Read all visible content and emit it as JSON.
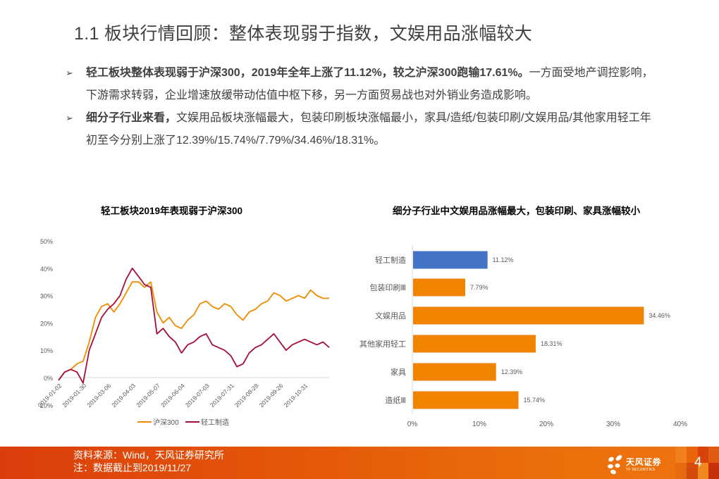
{
  "page": {
    "title": "1.1 板块行情回顾：整体表现弱于指数，文娱用品涨幅较大",
    "page_number": "4"
  },
  "bullets": [
    {
      "marker": "➢",
      "bold": "轻工板块整体表现弱于沪深300，2019年全年上涨了11.12%，较之沪深300跑输17.61%。",
      "text": "一方面受地产调控影响，下游需求转弱，企业增速放缓带动估值中枢下移，另一方面贸易战也对外销业务造成影响。"
    },
    {
      "marker": "➢",
      "bold": "细分子行业来看，",
      "text": "文娱用品板块涨幅最大，包装印刷板块涨幅最小，家具/造纸/包装印刷/文娱用品/其他家用轻工年初至今分别上涨了12.39%/15.74%/7.79%/34.46%/18.31%。"
    }
  ],
  "footer": {
    "source": "资料来源：Wind，天风证券研究所",
    "note": "注：数据截止到2019/11/27",
    "logo_name": "天风证券",
    "logo_sub": "TF SECURITIES"
  },
  "colors": {
    "hs300": "#f08a00",
    "light_industry": "#a50f37",
    "bar_highlight": "#4472c4",
    "bar_default": "#f08300",
    "footer_orange": "#e55a0a"
  },
  "chart_data": [
    {
      "type": "line",
      "title": "轻工板块2019年表现弱于沪深300",
      "xlabel": "",
      "ylabel": "",
      "ylim": [
        -0.1,
        0.5
      ],
      "yticks": [
        "-10%",
        "0%",
        "10%",
        "20%",
        "30%",
        "40%",
        "50%"
      ],
      "x_tick_labels": [
        "2019-01-02",
        "2019-01-30",
        "2019-03-06",
        "2019-04-03",
        "2019-05-07",
        "2019-06-04",
        "2019-07-03",
        "2019-07-31",
        "2019-08-28",
        "2019-09-26",
        "2019-10-31"
      ],
      "grid": false,
      "legend_position": "bottom",
      "x": [
        "2019-01-02",
        "2019-01-09",
        "2019-01-16",
        "2019-01-23",
        "2019-01-30",
        "2019-02-13",
        "2019-02-20",
        "2019-02-27",
        "2019-03-06",
        "2019-03-13",
        "2019-03-20",
        "2019-03-27",
        "2019-04-03",
        "2019-04-10",
        "2019-04-17",
        "2019-04-24",
        "2019-05-07",
        "2019-05-14",
        "2019-05-21",
        "2019-05-28",
        "2019-06-04",
        "2019-06-12",
        "2019-06-19",
        "2019-06-26",
        "2019-07-03",
        "2019-07-10",
        "2019-07-17",
        "2019-07-24",
        "2019-07-31",
        "2019-08-07",
        "2019-08-14",
        "2019-08-21",
        "2019-08-28",
        "2019-09-04",
        "2019-09-11",
        "2019-09-18",
        "2019-09-26",
        "2019-10-09",
        "2019-10-16",
        "2019-10-23",
        "2019-10-31",
        "2019-11-07",
        "2019-11-14",
        "2019-11-21",
        "2019-11-27"
      ],
      "series": [
        {
          "name": "沪深300",
          "values": [
            -0.01,
            0.02,
            0.03,
            0.05,
            0.06,
            0.13,
            0.22,
            0.26,
            0.27,
            0.24,
            0.27,
            0.31,
            0.35,
            0.35,
            0.33,
            0.35,
            0.24,
            0.2,
            0.22,
            0.19,
            0.18,
            0.21,
            0.23,
            0.27,
            0.28,
            0.26,
            0.25,
            0.27,
            0.26,
            0.23,
            0.21,
            0.24,
            0.25,
            0.27,
            0.28,
            0.31,
            0.3,
            0.28,
            0.29,
            0.3,
            0.29,
            0.32,
            0.3,
            0.29,
            0.29
          ]
        },
        {
          "name": "轻工制造",
          "values": [
            -0.01,
            0.02,
            0.03,
            0.02,
            -0.02,
            0.1,
            0.16,
            0.22,
            0.25,
            0.27,
            0.3,
            0.36,
            0.4,
            0.37,
            0.34,
            0.33,
            0.16,
            0.18,
            0.15,
            0.13,
            0.09,
            0.12,
            0.13,
            0.15,
            0.16,
            0.12,
            0.11,
            0.1,
            0.08,
            0.04,
            0.05,
            0.09,
            0.11,
            0.12,
            0.14,
            0.16,
            0.13,
            0.1,
            0.12,
            0.13,
            0.14,
            0.13,
            0.12,
            0.13,
            0.11
          ]
        }
      ]
    },
    {
      "type": "bar",
      "orientation": "horizontal",
      "title": "细分子行业中文娱用品涨幅最大，包装印刷、家具涨幅较小",
      "xlabel": "",
      "ylabel": "",
      "xlim": [
        0,
        40
      ],
      "xticks": [
        "0%",
        "10%",
        "20%",
        "30%",
        "40%"
      ],
      "grid": false,
      "categories": [
        "轻工制造",
        "包装印刷Ⅲ",
        "文娱用品",
        "其他家用轻工",
        "家具",
        "造纸Ⅲ"
      ],
      "values": [
        11.12,
        7.79,
        34.46,
        18.31,
        12.39,
        15.74
      ],
      "labels": [
        "11.12%",
        "7.79%",
        "34.46%",
        "18.31%",
        "12.39%",
        "15.74%"
      ],
      "highlight_index": 0
    }
  ]
}
